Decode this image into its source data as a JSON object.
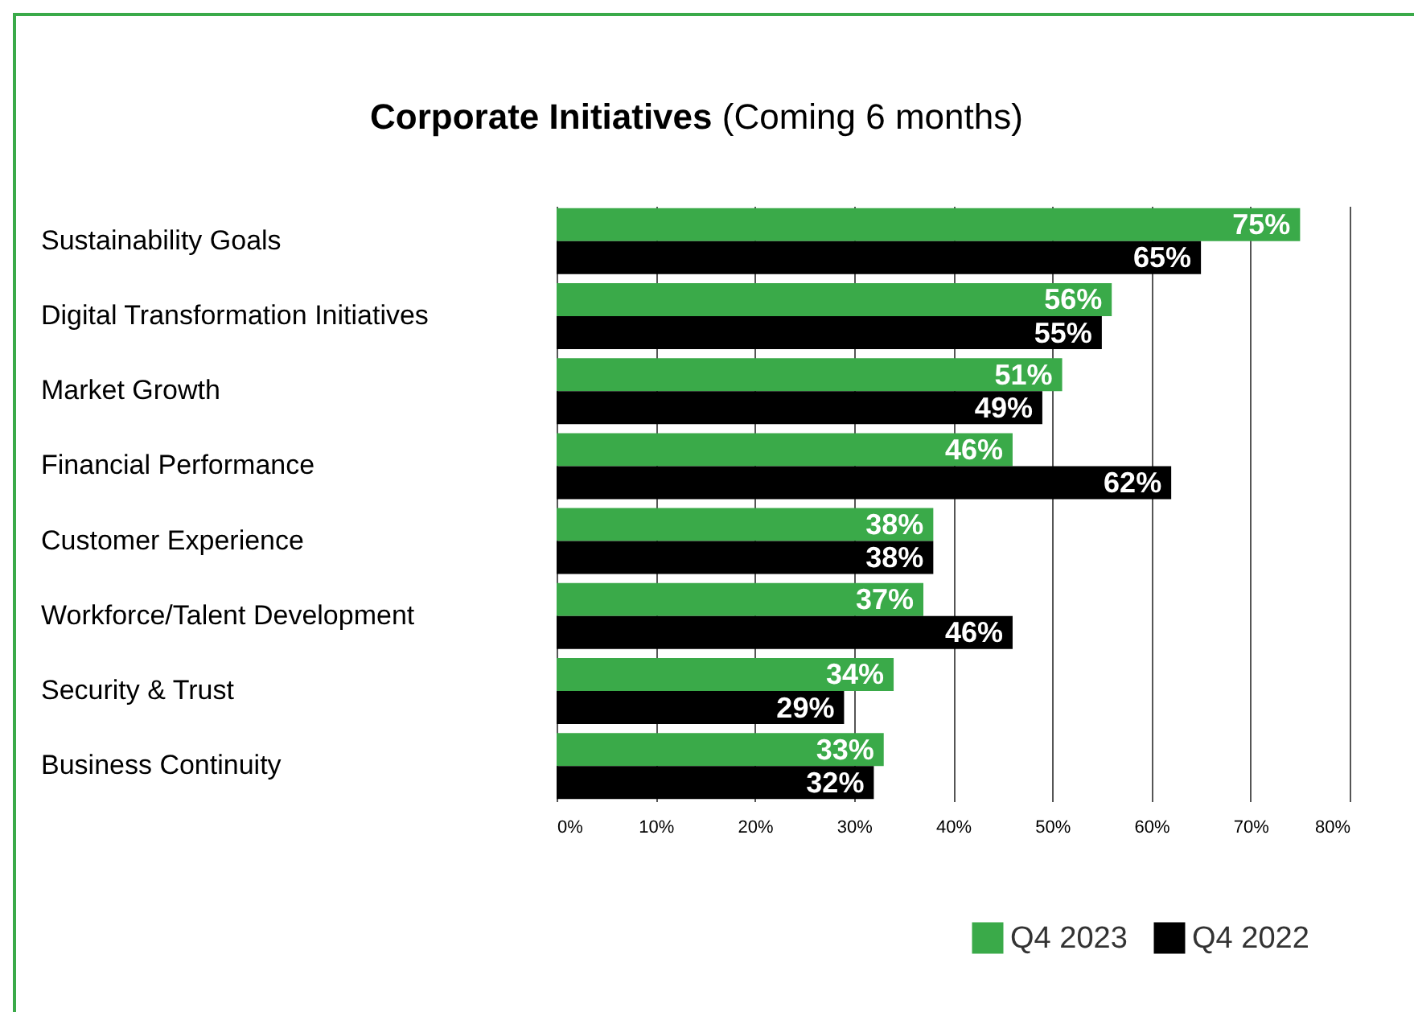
{
  "chart_data": {
    "type": "bar",
    "orientation": "horizontal",
    "title": "Corporate Initiatives",
    "subtitle": "(Coming 6 months)",
    "categories": [
      "Sustainability Goals",
      "Digital Transformation Initiatives",
      "Market Growth",
      "Financial Performance",
      "Customer Experience",
      "Workforce/Talent Development",
      "Security & Trust",
      "Business Continuity"
    ],
    "series": [
      {
        "name": "Q4 2023",
        "color": "#3aaa49",
        "values": [
          75,
          56,
          51,
          46,
          38,
          37,
          34,
          33
        ],
        "value_labels": [
          "75%",
          "56%",
          "51%",
          "46%",
          "38%",
          "37%",
          "34%",
          "33%"
        ]
      },
      {
        "name": "Q4 2022",
        "color": "#000000",
        "values": [
          65,
          55,
          49,
          62,
          38,
          46,
          29,
          32
        ],
        "value_labels": [
          "65%",
          "55%",
          "49%",
          "62%",
          "38%",
          "46%",
          "29%",
          "32%"
        ]
      }
    ],
    "xlim": [
      0,
      80
    ],
    "xticks": [
      {
        "value": 0,
        "label": "0%"
      },
      {
        "value": 10,
        "label": "10%"
      },
      {
        "value": 20,
        "label": "20%"
      },
      {
        "value": 30,
        "label": "30%"
      },
      {
        "value": 40,
        "label": "40%"
      },
      {
        "value": 50,
        "label": "50%"
      },
      {
        "value": 60,
        "label": "60%"
      },
      {
        "value": 70,
        "label": "70%"
      },
      {
        "value": 80,
        "label": "80%"
      }
    ],
    "grid": "x",
    "legend": "bottom right"
  }
}
